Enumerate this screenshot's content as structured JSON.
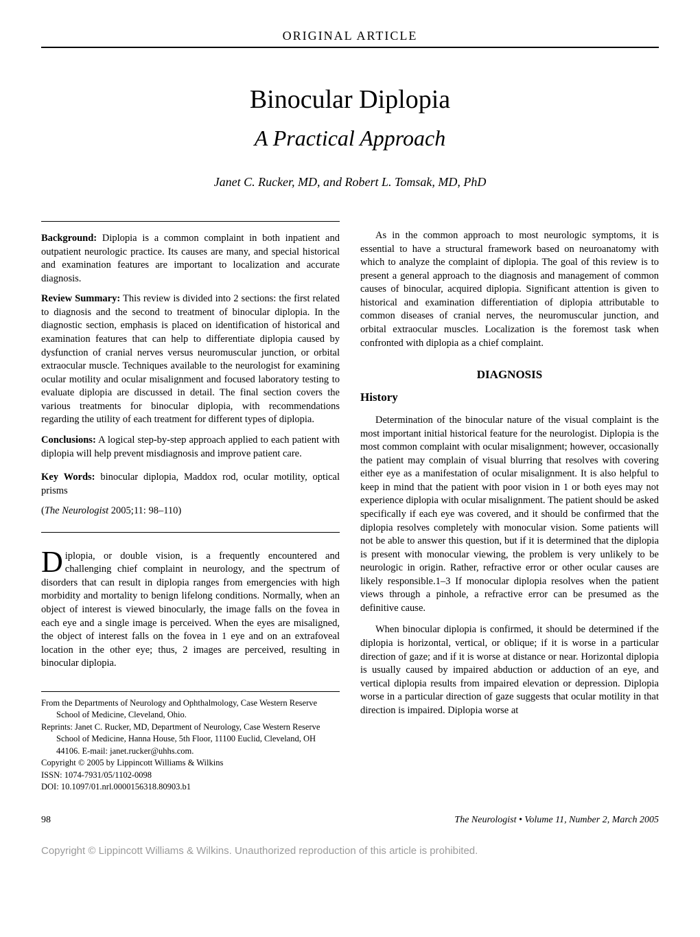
{
  "header_section": "ORIGINAL ARTICLE",
  "title": "Binocular Diplopia",
  "subtitle": "A Practical Approach",
  "authors": "Janet C. Rucker, MD, and Robert L. Tomsak, MD, PhD",
  "abstract": {
    "background": {
      "label": "Background:",
      "text": " Diplopia is a common complaint in both inpatient and outpatient neurologic practice. Its causes are many, and special historical and examination features are important to localization and accurate diagnosis."
    },
    "review": {
      "label": "Review Summary:",
      "text": " This review is divided into 2 sections: the first related to diagnosis and the second to treatment of binocular diplopia. In the diagnostic section, emphasis is placed on identification of historical and examination features that can help to differentiate diplopia caused by dysfunction of cranial nerves versus neuromuscular junction, or orbital extraocular muscle. Techniques available to the neurologist for examining ocular motility and ocular misalignment and focused laboratory testing to evaluate diplopia are discussed in detail. The final section covers the various treatments for binocular diplopia, with recommendations regarding the utility of each treatment for different types of diplopia."
    },
    "conclusions": {
      "label": "Conclusions:",
      "text": " A logical step-by-step approach applied to each patient with diplopia will help prevent misdiagnosis and improve patient care."
    }
  },
  "keywords": {
    "label": "Key Words:",
    "text": " binocular diplopia, Maddox rod, ocular motility, optical prisms"
  },
  "citation": {
    "journal": "The Neurologist",
    "text": " 2005;11: 98–110)"
  },
  "intro": {
    "dropcap": "D",
    "first": "iplopia, or double vision, is a frequently encountered and challenging chief complaint in neurology, and the spectrum of disorders that can result in diplopia ranges from emergencies with high morbidity and mortality to benign lifelong conditions. Normally, when an object of interest is viewed binocularly, the image falls on the fovea in each eye and a single image is perceived. When the eyes are misaligned, the object of interest falls on the fovea in 1 eye and on an extrafoveal location in the other eye; thus, 2 images are perceived, resulting in binocular diplopia."
  },
  "affiliations": {
    "from": "From the Departments of Neurology and Ophthalmology, Case Western Reserve School of Medicine, Cleveland, Ohio.",
    "reprints": "Reprints: Janet C. Rucker, MD, Department of Neurology, Case Western Reserve School of Medicine, Hanna House, 5th Floor, 11100 Euclid, Cleveland, OH 44106. E-mail: janet.rucker@uhhs.com.",
    "copyright": "Copyright © 2005 by Lippincott Williams & Wilkins",
    "issn": "ISSN: 1074-7931/05/1102-0098",
    "doi": "DOI: 10.1097/01.nrl.0000156318.80903.b1"
  },
  "col2": {
    "para1": "As in the common approach to most neurologic symptoms, it is essential to have a structural framework based on neuroanatomy with which to analyze the complaint of diplopia. The goal of this review is to present a general approach to the diagnosis and management of common causes of binocular, acquired diplopia. Significant attention is given to historical and examination differentiation of diplopia attributable to common diseases of cranial nerves, the neuromuscular junction, and orbital extraocular muscles. Localization is the foremost task when confronted with diplopia as a chief complaint.",
    "heading_diagnosis": "DIAGNOSIS",
    "heading_history": "History",
    "history_p1": "Determination of the binocular nature of the visual complaint is the most important initial historical feature for the neurologist. Diplopia is the most common complaint with ocular misalignment; however, occasionally the patient may complain of visual blurring that resolves with covering either eye as a manifestation of ocular misalignment. It is also helpful to keep in mind that the patient with poor vision in 1 or both eyes may not experience diplopia with ocular misalignment. The patient should be asked specifically if each eye was covered, and it should be confirmed that the diplopia resolves completely with monocular vision. Some patients will not be able to answer this question, but if it is determined that the diplopia is present with monocular viewing, the problem is very unlikely to be neurologic in origin. Rather, refractive error or other ocular causes are likely responsible.1–3 If monocular diplopia resolves when the patient views through a pinhole, a refractive error can be presumed as the definitive cause.",
    "history_p2": "When binocular diplopia is confirmed, it should be determined if the diplopia is horizontal, vertical, or oblique; if it is worse in a particular direction of gaze; and if it is worse at distance or near. Horizontal diplopia is usually caused by impaired abduction or adduction of an eye, and vertical diplopia results from impaired elevation or depression. Diplopia worse in a particular direction of gaze suggests that ocular motility in that direction is impaired. Diplopia worse at"
  },
  "footer": {
    "page": "98",
    "journal_line": "The Neurologist • Volume 11, Number 2, March 2005"
  },
  "copyright_bar": "Copyright © Lippincott Williams & Wilkins. Unauthorized reproduction of this article is prohibited."
}
